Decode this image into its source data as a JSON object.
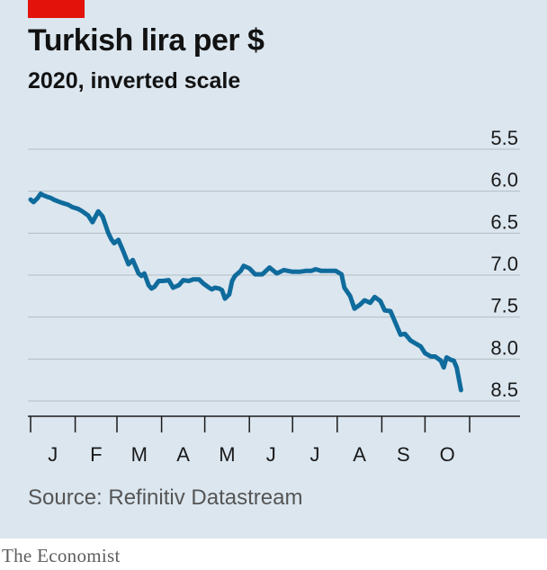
{
  "brand": "The Economist",
  "chart_data": {
    "type": "line",
    "title": "Turkish lira per $",
    "subtitle": "2020, inverted scale",
    "source": "Source: Refinitiv Datastream",
    "y_inverted": true,
    "ylim": [
      5.5,
      8.5
    ],
    "yticks": [
      "5.5",
      "6.0",
      "6.5",
      "7.0",
      "7.5",
      "8.0",
      "8.5"
    ],
    "yticks_values": [
      5.5,
      6.0,
      6.5,
      7.0,
      7.5,
      8.0,
      8.5
    ],
    "xticks": [
      "J",
      "F",
      "M",
      "A",
      "M",
      "J",
      "J",
      "A",
      "S",
      "O"
    ],
    "xlim": [
      "2020-01-01",
      "2020-11-01"
    ],
    "grid": true,
    "line_color": "#0f6b9c",
    "x": [
      "2020-01-01",
      "2020-01-03",
      "2020-01-06",
      "2020-01-08",
      "2020-01-10",
      "2020-01-13",
      "2020-01-15",
      "2020-01-17",
      "2020-01-20",
      "2020-01-23",
      "2020-01-27",
      "2020-01-30",
      "2020-02-03",
      "2020-02-06",
      "2020-02-10",
      "2020-02-13",
      "2020-02-17",
      "2020-02-20",
      "2020-02-24",
      "2020-02-26",
      "2020-02-28",
      "2020-03-02",
      "2020-03-05",
      "2020-03-09",
      "2020-03-12",
      "2020-03-16",
      "2020-03-18",
      "2020-03-20",
      "2020-03-23",
      "2020-03-25",
      "2020-03-27",
      "2020-03-30",
      "2020-04-02",
      "2020-04-06",
      "2020-04-09",
      "2020-04-13",
      "2020-04-16",
      "2020-04-20",
      "2020-04-23",
      "2020-04-27",
      "2020-04-30",
      "2020-05-04",
      "2020-05-06",
      "2020-05-08",
      "2020-05-11",
      "2020-05-13",
      "2020-05-15",
      "2020-05-18",
      "2020-05-20",
      "2020-05-22",
      "2020-05-26",
      "2020-05-28",
      "2020-06-01",
      "2020-06-05",
      "2020-06-10",
      "2020-06-15",
      "2020-06-20",
      "2020-06-25",
      "2020-07-01",
      "2020-07-06",
      "2020-07-10",
      "2020-07-14",
      "2020-07-17",
      "2020-07-21",
      "2020-07-24",
      "2020-07-28",
      "2020-07-31",
      "2020-08-04",
      "2020-08-06",
      "2020-08-10",
      "2020-08-13",
      "2020-08-17",
      "2020-08-20",
      "2020-08-24",
      "2020-08-27",
      "2020-08-31",
      "2020-09-03",
      "2020-09-07",
      "2020-09-10",
      "2020-09-14",
      "2020-09-17",
      "2020-09-21",
      "2020-09-24",
      "2020-09-28",
      "2020-10-01",
      "2020-10-05",
      "2020-10-08",
      "2020-10-12",
      "2020-10-14",
      "2020-10-16",
      "2020-10-19",
      "2020-10-21",
      "2020-10-23",
      "2020-10-26"
    ],
    "y": [
      6.1,
      6.13,
      6.08,
      6.03,
      6.05,
      6.07,
      6.08,
      6.1,
      6.12,
      6.14,
      6.16,
      6.19,
      6.21,
      6.24,
      6.29,
      6.37,
      6.24,
      6.3,
      6.5,
      6.57,
      6.62,
      6.58,
      6.7,
      6.87,
      6.82,
      6.98,
      7.01,
      6.98,
      7.12,
      7.16,
      7.14,
      7.07,
      7.07,
      7.06,
      7.15,
      7.12,
      7.06,
      7.07,
      7.05,
      7.05,
      7.1,
      7.15,
      7.17,
      7.15,
      7.16,
      7.18,
      7.28,
      7.23,
      7.07,
      7.01,
      6.95,
      6.89,
      6.92,
      6.99,
      6.99,
      6.91,
      6.98,
      6.94,
      6.96,
      6.96,
      6.95,
      6.95,
      6.93,
      6.95,
      6.95,
      6.95,
      6.95,
      6.99,
      7.15,
      7.25,
      7.4,
      7.35,
      7.3,
      7.33,
      7.26,
      7.31,
      7.42,
      7.43,
      7.55,
      7.71,
      7.7,
      7.78,
      7.81,
      7.85,
      7.93,
      7.97,
      7.97,
      8.02,
      8.1,
      7.98,
      8.01,
      8.02,
      8.1,
      8.37
    ]
  }
}
